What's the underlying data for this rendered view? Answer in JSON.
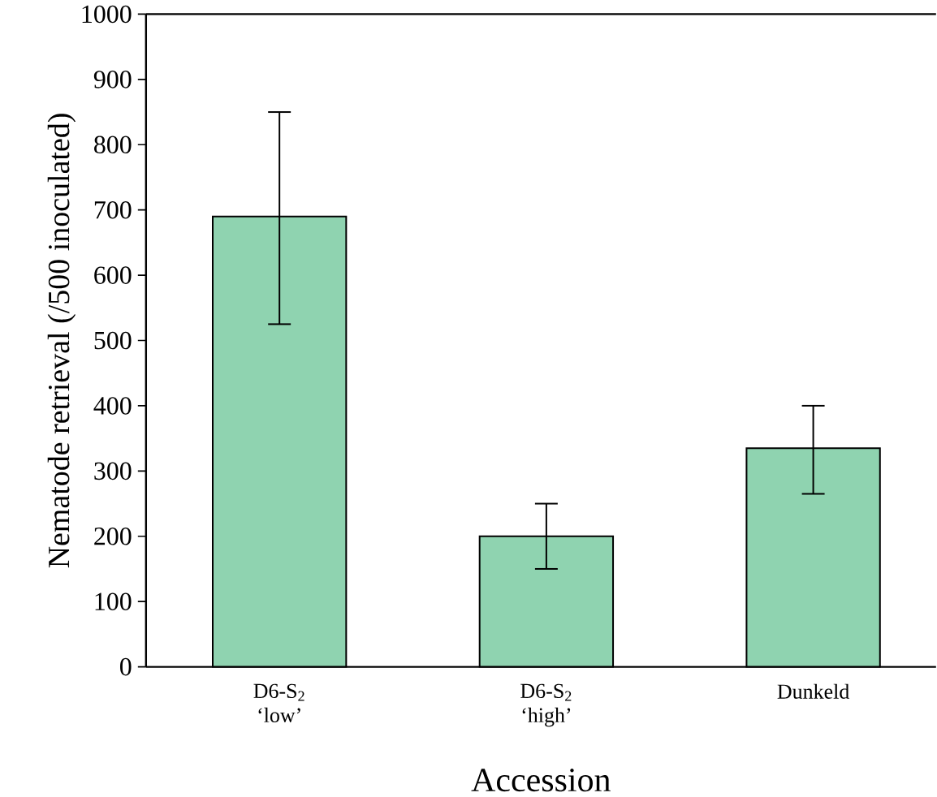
{
  "chart_data": {
    "type": "bar",
    "xlabel": "Accession",
    "ylabel": "Nematode retrieval (/500 inoculated)",
    "categories": [
      "D6-S$_{2}$ ‘low’",
      "D6-S$_{2}$ ‘high’",
      "Dunkeld"
    ],
    "values": [
      690,
      200,
      335
    ],
    "errors": [
      [
        525,
        850
      ],
      [
        150,
        250
      ],
      [
        265,
        400
      ]
    ],
    "color": "#8fd3b0",
    "ylim": [
      0,
      1000
    ],
    "yticks": [
      0,
      100,
      200,
      300,
      400,
      500,
      600,
      700,
      800,
      900,
      1000
    ]
  }
}
